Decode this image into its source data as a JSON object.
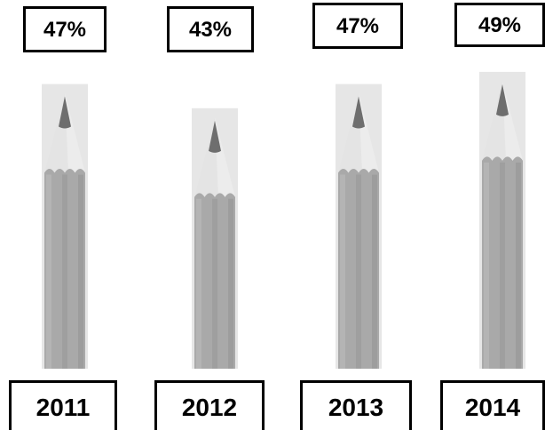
{
  "chart_data": {
    "type": "bar",
    "categories": [
      "2011",
      "2012",
      "2013",
      "2014"
    ],
    "values": [
      47,
      43,
      47,
      49
    ],
    "value_labels": [
      "47%",
      "43%",
      "47%",
      "49%"
    ],
    "unit": "%",
    "title": "",
    "xlabel": "",
    "ylabel": "",
    "ylim": [
      0,
      55
    ],
    "grid": false,
    "legend": "none",
    "mark_style": "pencil",
    "colors": {
      "body": "#a9a9a9",
      "body_dark": "#939393",
      "body_light": "#bdbdbd",
      "wood": "#ececec",
      "wood_shadow": "#dcdcdc",
      "lead": "#6e6e6e",
      "frame": "#e6e6e6",
      "box_border": "#000000",
      "text": "#000000"
    }
  }
}
